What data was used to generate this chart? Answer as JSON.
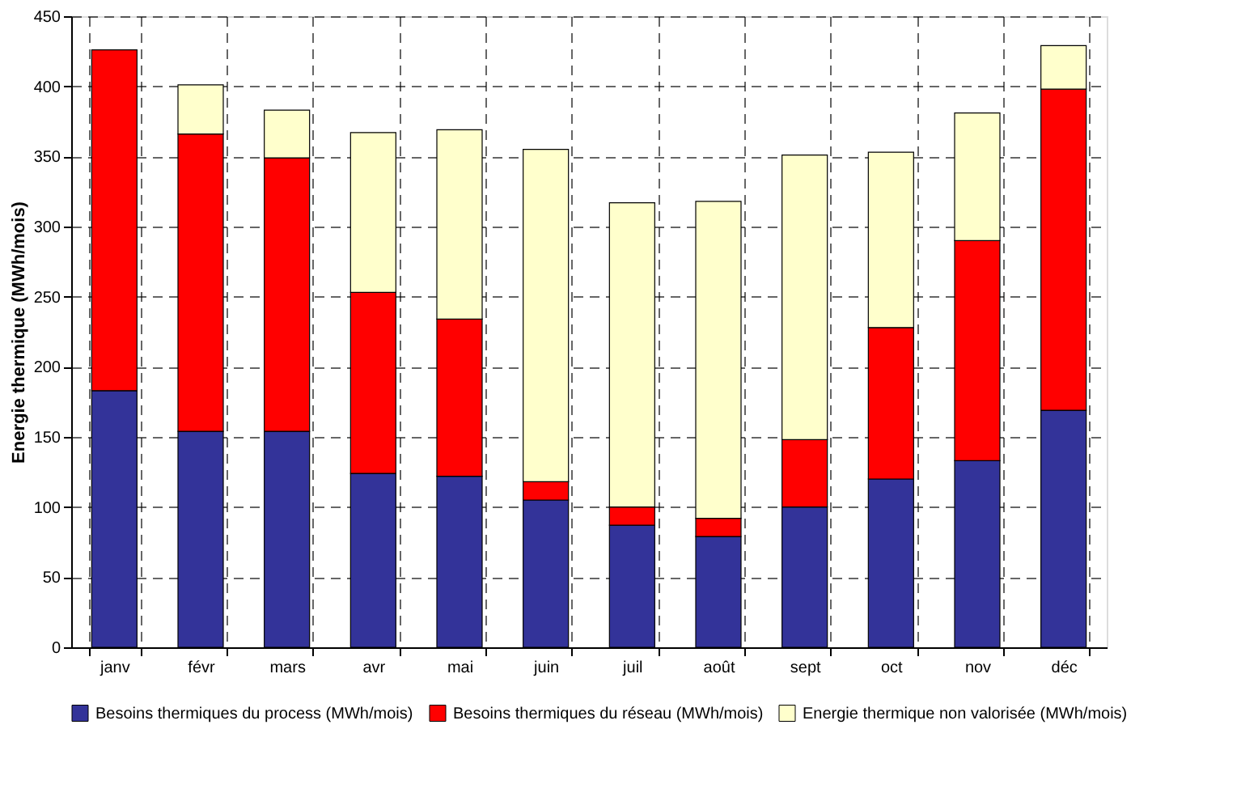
{
  "chart_data": {
    "type": "bar",
    "stacked": true,
    "ylabel": "Energie thermique (MWh/mois)",
    "categories": [
      "janv",
      "févr",
      "mars",
      "avr",
      "mai",
      "juin",
      "juil",
      "août",
      "sept",
      "oct",
      "nov",
      "déc"
    ],
    "series": [
      {
        "name": "Besoins thermiques du process (MWh/mois)",
        "color": "#333399",
        "values": [
          183,
          154,
          154,
          124,
          122,
          105,
          87,
          79,
          100,
          120,
          133,
          169
        ]
      },
      {
        "name": "Besoins thermiques du réseau (MWh/mois)",
        "color": "#ff0000",
        "values": [
          243,
          212,
          195,
          129,
          112,
          13,
          13,
          13,
          48,
          108,
          157,
          229
        ]
      },
      {
        "name": "Energie thermique non valorisée (MWh/mois)",
        "color": "#ffffcc",
        "values": [
          null,
          35,
          34,
          114,
          135,
          237,
          217,
          226,
          203,
          125,
          91,
          31
        ]
      }
    ],
    "ylim": [
      0,
      450
    ],
    "yticks": [
      0,
      50,
      100,
      150,
      200,
      250,
      300,
      350,
      400,
      450
    ],
    "grid": true,
    "legend": "bottom"
  }
}
